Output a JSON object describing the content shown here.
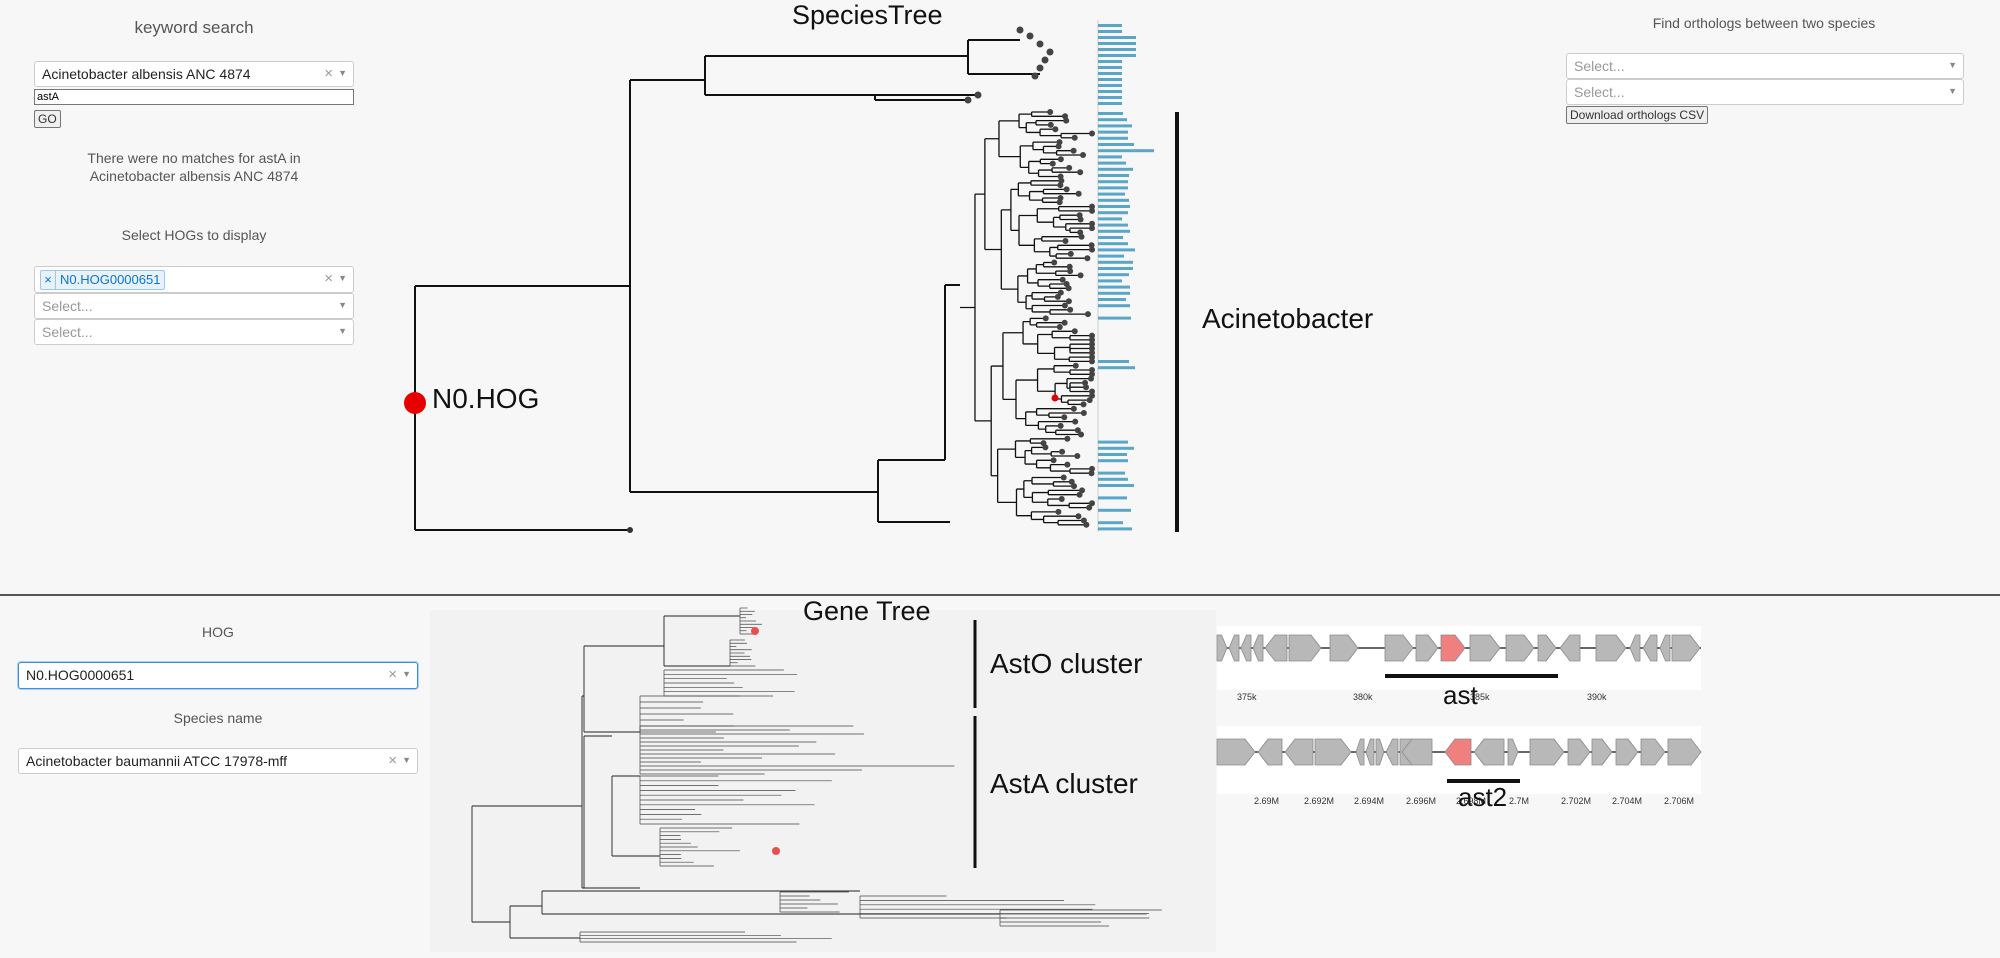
{
  "left_panel": {
    "keyword_search_label": "keyword search",
    "species_select": {
      "value": "Acinetobacter albensis ANC 4874"
    },
    "search_input": {
      "value": "astA"
    },
    "go_button": "GO",
    "no_match_message": "There were no matches for astA in Acinetobacter albensis ANC 4874",
    "select_hogs_label": "Select HOGs to display",
    "hog_selects": [
      {
        "tag": "N0.HOG0000651"
      },
      {
        "placeholder": "Select..."
      },
      {
        "placeholder": "Select..."
      }
    ]
  },
  "species_tree": {
    "title": "SpeciesTree",
    "root_label": "N0.HOG",
    "clade_label": "Acinetobacter"
  },
  "orthologs": {
    "title": "Find orthologs between two species",
    "select_a": {
      "placeholder": "Select..."
    },
    "select_b": {
      "placeholder": "Select..."
    },
    "download_button": "Download orthologs CSV"
  },
  "bottom_left": {
    "hog_label": "HOG",
    "hog_select": {
      "value": "N0.HOG0000651"
    },
    "species_label": "Species name",
    "species_select": {
      "value": "Acinetobacter baumannii ATCC 17978-mff"
    }
  },
  "gene_tree": {
    "title": "Gene Tree",
    "cluster_a": "AstO cluster",
    "cluster_b": "AstA cluster"
  },
  "gene_neighborhoods": {
    "track1": {
      "label": "ast",
      "ticks": [
        "375k",
        "380k",
        "385k",
        "390k"
      ]
    },
    "track2": {
      "label": "ast2",
      "ticks": [
        "2.69M",
        "2.692M",
        "2.694M",
        "2.696M",
        "2.698M",
        "2.7M",
        "2.702M",
        "2.704M",
        "2.706M"
      ]
    },
    "highlight_color": "#f08080",
    "gene_color": "#b8b8b8"
  },
  "colors": {
    "accent_red": "#e80000",
    "bar_blue": "#5aa6c8",
    "focus_blue": "#3a8fe0"
  }
}
